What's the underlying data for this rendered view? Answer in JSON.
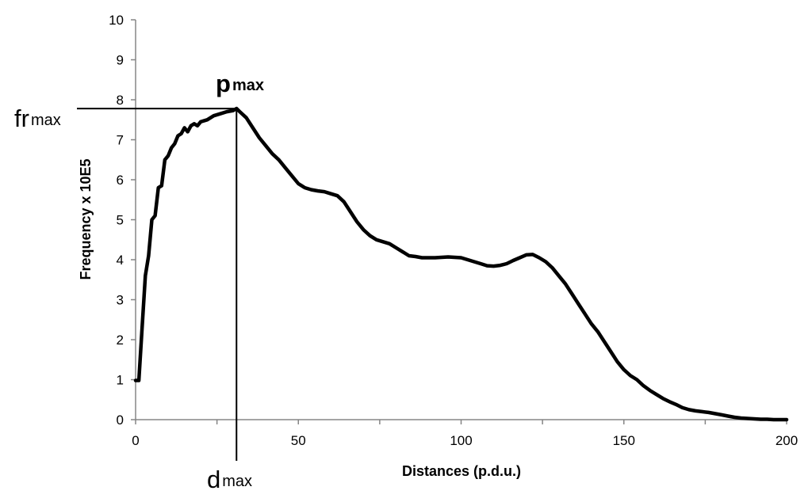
{
  "chart_data": {
    "type": "line",
    "title": "",
    "xlabel": "Distances (p.d.u.)",
    "ylabel": "Frequency x 10E5",
    "xlim": [
      0,
      200
    ],
    "ylim": [
      0,
      10
    ],
    "x_ticks": [
      0,
      50,
      100,
      150,
      200
    ],
    "x_minor_ticks": [
      25,
      75,
      125,
      175
    ],
    "y_ticks": [
      0,
      1,
      2,
      3,
      4,
      5,
      6,
      7,
      8,
      9,
      10
    ],
    "grid": false,
    "legend": "none",
    "line_color": "#000000",
    "series": [
      {
        "x": [
          0,
          1,
          2,
          3,
          4,
          5,
          6,
          7,
          8,
          9,
          10,
          11,
          12,
          13,
          14,
          15,
          16,
          17,
          18,
          19,
          20,
          22,
          24,
          26,
          28,
          30,
          31,
          32,
          34,
          36,
          38,
          40,
          42,
          44,
          46,
          48,
          50,
          52,
          54,
          56,
          58,
          60,
          62,
          64,
          66,
          68,
          70,
          72,
          74,
          76,
          78,
          80,
          82,
          84,
          86,
          88,
          90,
          92,
          94,
          96,
          98,
          100,
          102,
          104,
          106,
          108,
          110,
          112,
          114,
          116,
          118,
          120,
          122,
          124,
          126,
          128,
          130,
          132,
          134,
          136,
          138,
          140,
          142,
          144,
          146,
          148,
          150,
          152,
          154,
          156,
          158,
          160,
          162,
          164,
          166,
          168,
          170,
          172,
          174,
          176,
          178,
          180,
          182,
          184,
          186,
          188,
          190,
          192,
          194,
          196,
          198,
          200
        ],
        "y": [
          0.98,
          0.98,
          2.3,
          3.6,
          4.1,
          5.0,
          5.1,
          5.8,
          5.85,
          6.5,
          6.6,
          6.8,
          6.9,
          7.1,
          7.15,
          7.3,
          7.2,
          7.35,
          7.4,
          7.35,
          7.45,
          7.5,
          7.6,
          7.65,
          7.7,
          7.73,
          7.78,
          7.7,
          7.55,
          7.3,
          7.05,
          6.85,
          6.65,
          6.5,
          6.3,
          6.1,
          5.9,
          5.8,
          5.75,
          5.72,
          5.7,
          5.65,
          5.6,
          5.45,
          5.2,
          4.95,
          4.75,
          4.6,
          4.5,
          4.45,
          4.4,
          4.3,
          4.2,
          4.1,
          4.08,
          4.05,
          4.05,
          4.05,
          4.06,
          4.07,
          4.06,
          4.05,
          4.0,
          3.95,
          3.9,
          3.85,
          3.84,
          3.86,
          3.9,
          3.98,
          4.05,
          4.12,
          4.13,
          4.05,
          3.95,
          3.8,
          3.6,
          3.4,
          3.15,
          2.9,
          2.65,
          2.4,
          2.2,
          1.95,
          1.7,
          1.45,
          1.25,
          1.1,
          1.0,
          0.85,
          0.73,
          0.63,
          0.53,
          0.45,
          0.38,
          0.3,
          0.25,
          0.22,
          0.2,
          0.18,
          0.15,
          0.12,
          0.09,
          0.06,
          0.04,
          0.03,
          0.02,
          0.01,
          0.01,
          0.0,
          0.0,
          0.0
        ]
      }
    ],
    "annotations": {
      "peak": {
        "x": 31,
        "y": 7.78
      },
      "p_main": "p",
      "p_sub": "max",
      "fr_main": "fr",
      "fr_sub": "max",
      "d_main": "d",
      "d_sub": "max"
    }
  }
}
